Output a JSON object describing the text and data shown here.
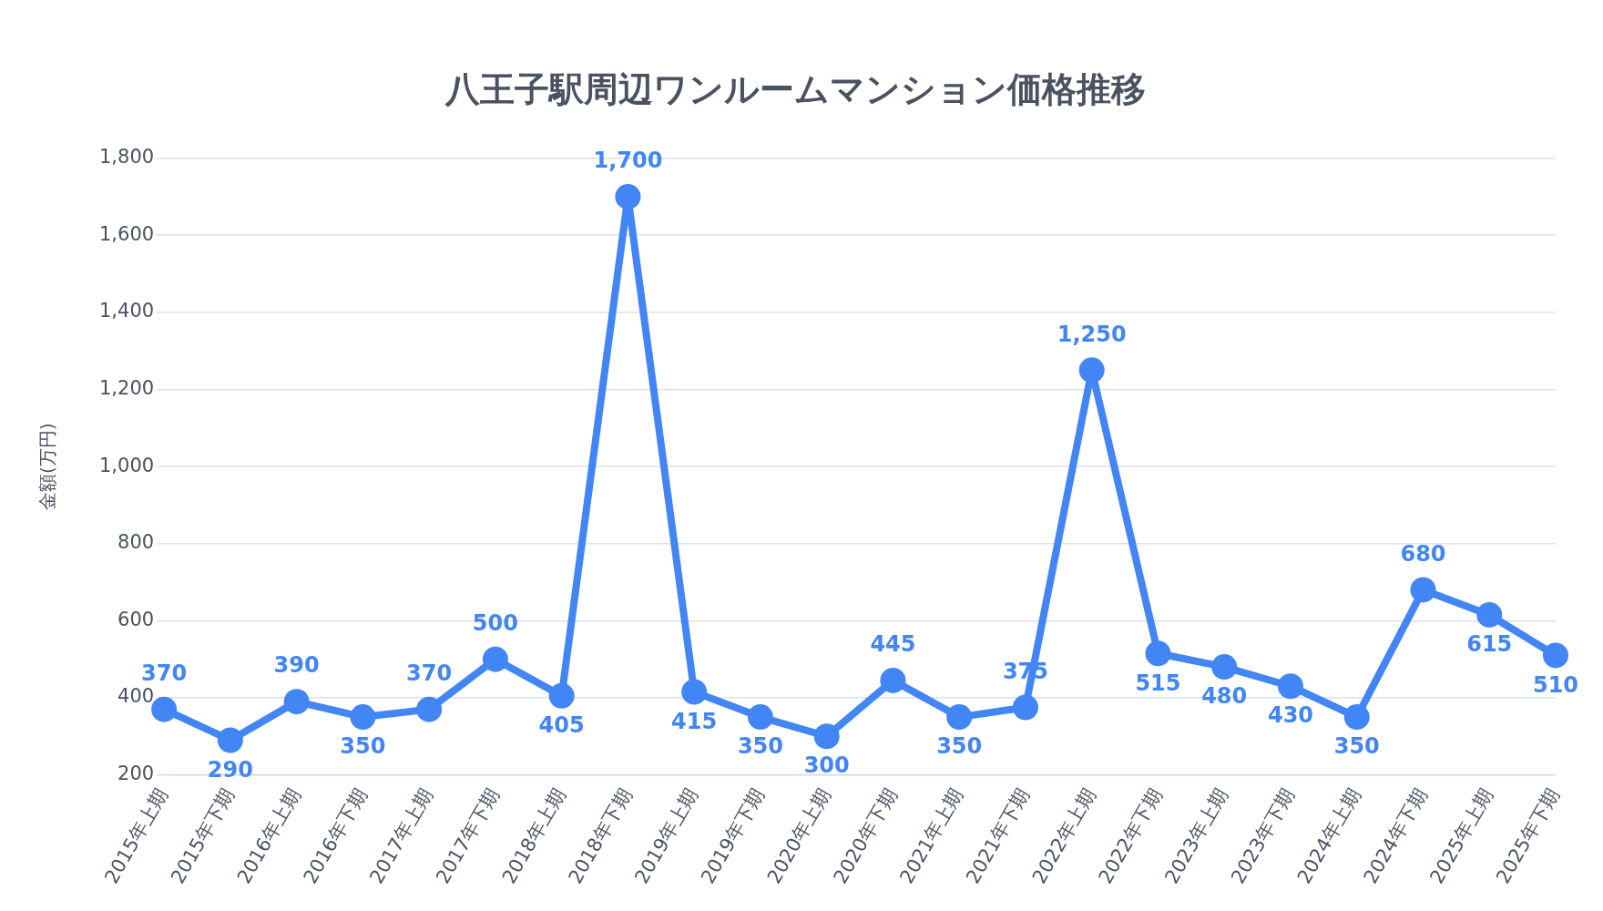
{
  "chart_data": {
    "type": "line",
    "title": "八王子駅周辺ワンルームマンション価格推移",
    "ylabel": "金額(万円)",
    "categories": [
      "2015年上期",
      "2015年下期",
      "2016年上期",
      "2016年下期",
      "2017年上期",
      "2017年下期",
      "2018年上期",
      "2018年下期",
      "2019年上期",
      "2019年下期",
      "2020年上期",
      "2020年下期",
      "2021年上期",
      "2021年下期",
      "2022年上期",
      "2022年下期",
      "2023年上期",
      "2023年下期",
      "2024年上期",
      "2024年下期",
      "2025年上期",
      "2025年下期"
    ],
    "series": [
      {
        "color": "#4285f4",
        "values": [
          370,
          290,
          390,
          350,
          370,
          500,
          405,
          1700,
          415,
          350,
          300,
          445,
          350,
          375,
          1250,
          515,
          480,
          430,
          350,
          680,
          615,
          510
        ],
        "value_labels": [
          "370",
          "290",
          "390",
          "350",
          "370",
          "500",
          "405",
          "1,700",
          "415",
          "350",
          "300",
          "445",
          "350",
          "375",
          "1,250",
          "515",
          "480",
          "430",
          "350",
          "680",
          "615",
          "510"
        ]
      }
    ],
    "ylim": [
      200,
      1800
    ],
    "yticks": [
      200,
      400,
      600,
      800,
      {
        "value": 1000,
        "label": "1,000"
      },
      {
        "value": 1200,
        "label": "1,200"
      },
      {
        "value": 1400,
        "label": "1,400"
      },
      {
        "value": 1600,
        "label": "1,600"
      },
      {
        "value": 1800,
        "label": "1,800"
      }
    ],
    "grid": "y",
    "legend": false,
    "marker": "circle",
    "line_style": "solid"
  }
}
